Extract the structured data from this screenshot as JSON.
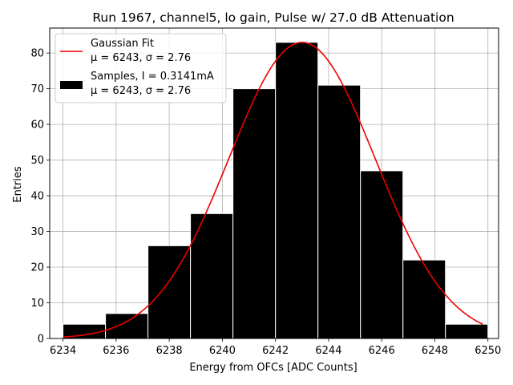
{
  "chart_data": {
    "type": "bar",
    "title": "Run 1967, channel5, lo gain, Pulse w/ 27.0 dB Attenuation",
    "xlabel": "Energy from OFCs [ADC Counts]",
    "ylabel": "Entries",
    "xlim": [
      6233.5,
      6250.4
    ],
    "ylim": [
      0,
      87
    ],
    "xticks": [
      6234,
      6236,
      6238,
      6240,
      6242,
      6244,
      6246,
      6248,
      6250
    ],
    "yticks": [
      0,
      10,
      20,
      30,
      40,
      50,
      60,
      70,
      80
    ],
    "grid": true,
    "legend_position": "top-left",
    "histogram": {
      "color": "#000000",
      "edge_color": "#ffffff",
      "bins": [
        {
          "x0": 6234.0,
          "x1": 6235.6,
          "count": 4
        },
        {
          "x0": 6235.6,
          "x1": 6237.2,
          "count": 7
        },
        {
          "x0": 6237.2,
          "x1": 6238.8,
          "count": 26
        },
        {
          "x0": 6238.8,
          "x1": 6240.4,
          "count": 35
        },
        {
          "x0": 6240.4,
          "x1": 6242.0,
          "count": 70
        },
        {
          "x0": 6242.0,
          "x1": 6243.6,
          "count": 83
        },
        {
          "x0": 6243.6,
          "x1": 6245.2,
          "count": 71
        },
        {
          "x0": 6245.2,
          "x1": 6246.8,
          "count": 47
        },
        {
          "x0": 6246.8,
          "x1": 6248.4,
          "count": 22
        },
        {
          "x0": 6248.4,
          "x1": 6250.0,
          "count": 4
        }
      ]
    },
    "gaussian_fit": {
      "color": "#ee0000",
      "mean": 6243,
      "sigma": 2.76,
      "amplitude": 83,
      "x_range": [
        6234.0,
        6249.8
      ]
    },
    "legend": [
      {
        "kind": "line",
        "color": "#ee0000",
        "line1": "Gaussian Fit",
        "line2": "μ = 6243, σ = 2.76"
      },
      {
        "kind": "patch",
        "color": "#000000",
        "line1": "Samples, I = 0.3141mA",
        "line2": "μ = 6243, σ = 2.76"
      }
    ]
  }
}
